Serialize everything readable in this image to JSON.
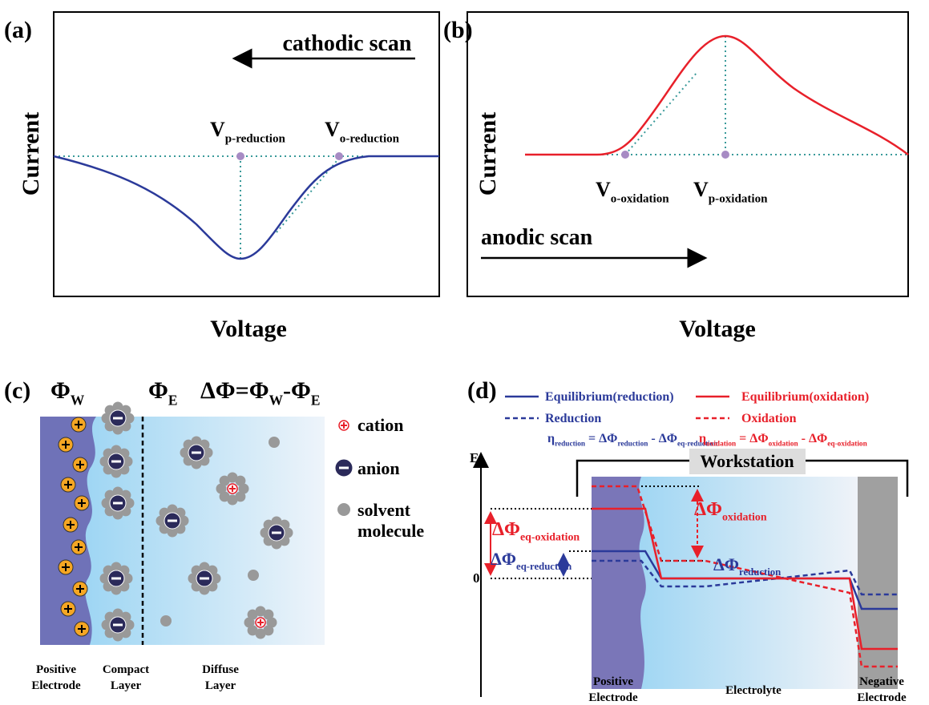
{
  "panel_a": {
    "tag": "(a)",
    "arrow_label": "cathodic scan",
    "y_label": "Current",
    "x_label": "Voltage",
    "markers": [
      [
        {
          "text": "V"
        },
        {
          "sub": "p-reduction"
        }
      ],
      [
        {
          "text": "V"
        },
        {
          "sub": "o-reduction"
        }
      ]
    ]
  },
  "panel_b": {
    "tag": "(b)",
    "arrow_label": "anodic scan",
    "y_label": "Current",
    "x_label": "Voltage",
    "markers": [
      [
        {
          "text": "V"
        },
        {
          "sub": "o-oxidation"
        }
      ],
      [
        {
          "text": "V"
        },
        {
          "sub": "p-oxidation"
        }
      ]
    ]
  },
  "panel_c": {
    "tag": "(c)",
    "header": [
      [
        {
          "text": "Φ"
        },
        {
          "sub": "W"
        }
      ],
      [
        {
          "text": "Φ"
        },
        {
          "sub": "E"
        }
      ],
      [
        {
          "text": "ΔΦ=Φ"
        },
        {
          "sub": "W"
        },
        {
          "text": "-Φ"
        },
        {
          "sub": "E"
        }
      ]
    ],
    "legend": [
      [
        "cation"
      ],
      [
        "anion"
      ],
      [
        "solvent",
        "molecule"
      ]
    ],
    "bottom_labels": [
      [
        "Positive",
        "Electrode"
      ],
      [
        "Compact",
        "Layer"
      ],
      [
        "Diffuse",
        "Layer"
      ]
    ]
  },
  "panel_d": {
    "tag": "(d)",
    "legend": [
      "Equilibrium(reduction)",
      "Reduction",
      "Equilibrium(oxidation)",
      "Oxidation"
    ],
    "eta_reduction": [
      {
        "text": "η"
      },
      {
        "sub": "reduction"
      },
      {
        "text": " = ΔΦ"
      },
      {
        "sub": "reduction"
      },
      {
        "text": " - ΔΦ"
      },
      {
        "sub": "eq-reduction"
      }
    ],
    "eta_oxidation": [
      {
        "text": "η"
      },
      {
        "sub": "oxidation"
      },
      {
        "text": " = ΔΦ"
      },
      {
        "sub": "oxidation"
      },
      {
        "text": " - ΔΦ"
      },
      {
        "sub": "eq-oxidation"
      }
    ],
    "axis_label": "E",
    "zero_label": "0",
    "workstation": "Workstation",
    "dphi_eq_oxidation": [
      {
        "text": "ΔΦ"
      },
      {
        "sub": "eq-oxidation"
      }
    ],
    "dphi_eq_reduction": [
      {
        "text": "ΔΦ"
      },
      {
        "sub": "eq-reduction"
      }
    ],
    "dphi_oxidation": [
      {
        "text": "ΔΦ"
      },
      {
        "sub": "oxidation"
      }
    ],
    "dphi_reduction": [
      {
        "text": "ΔΦ"
      },
      {
        "sub": "reduction"
      }
    ],
    "bottom_labels": [
      [
        "Positive",
        "Electrode"
      ],
      [
        "Electrolyte"
      ],
      [
        "Negative",
        "Electrode"
      ]
    ]
  }
}
